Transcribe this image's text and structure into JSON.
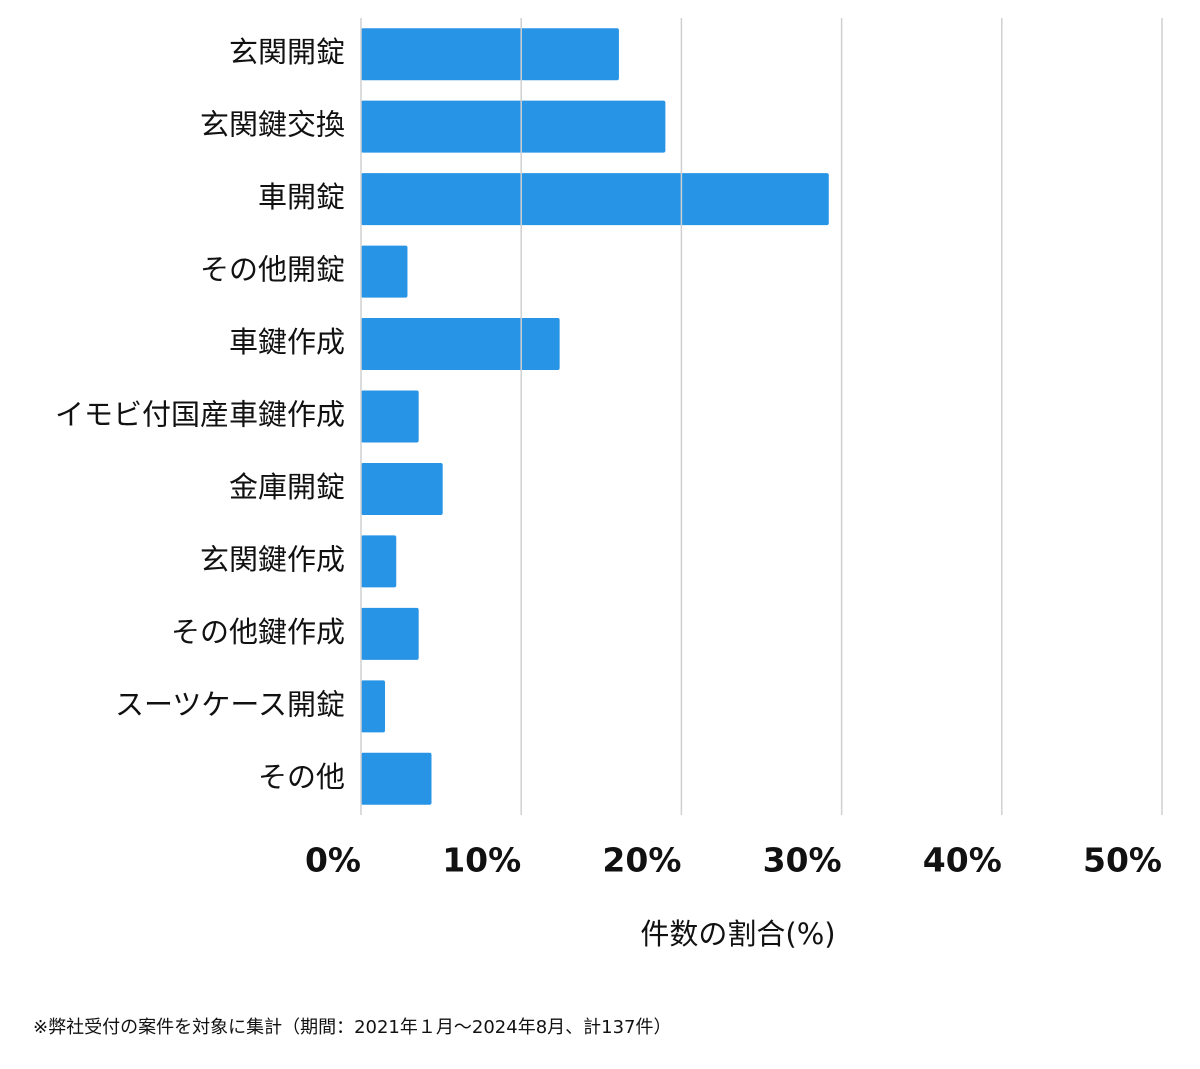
{
  "chart_data": {
    "type": "bar",
    "orientation": "horizontal",
    "categories": [
      "玄関開錠",
      "玄関鍵交換",
      "車開錠",
      "その他開錠",
      "車鍵作成",
      "イモビ付国産車鍵作成",
      "金庫開錠",
      "玄関鍵作成",
      "その他鍵作成",
      "スーツケース開錠",
      "その他"
    ],
    "values": [
      16.1,
      19.0,
      29.2,
      2.9,
      12.4,
      3.6,
      5.1,
      2.2,
      3.6,
      1.5,
      4.4
    ],
    "color": "#2894e6",
    "xlim": [
      0,
      50
    ],
    "xticks": [
      {
        "value": 0,
        "label": "0%"
      },
      {
        "value": 10,
        "label": "10%"
      },
      {
        "value": 20,
        "label": "20%"
      },
      {
        "value": 30,
        "label": "30%"
      },
      {
        "value": 40,
        "label": "40%"
      },
      {
        "value": 50,
        "label": "50%"
      }
    ],
    "grid": true,
    "xlabel": "件数の割合(%)",
    "note": "※弊社受付の案件を対象に集計（期間：2021年１月〜2024年8月、計137件）"
  }
}
